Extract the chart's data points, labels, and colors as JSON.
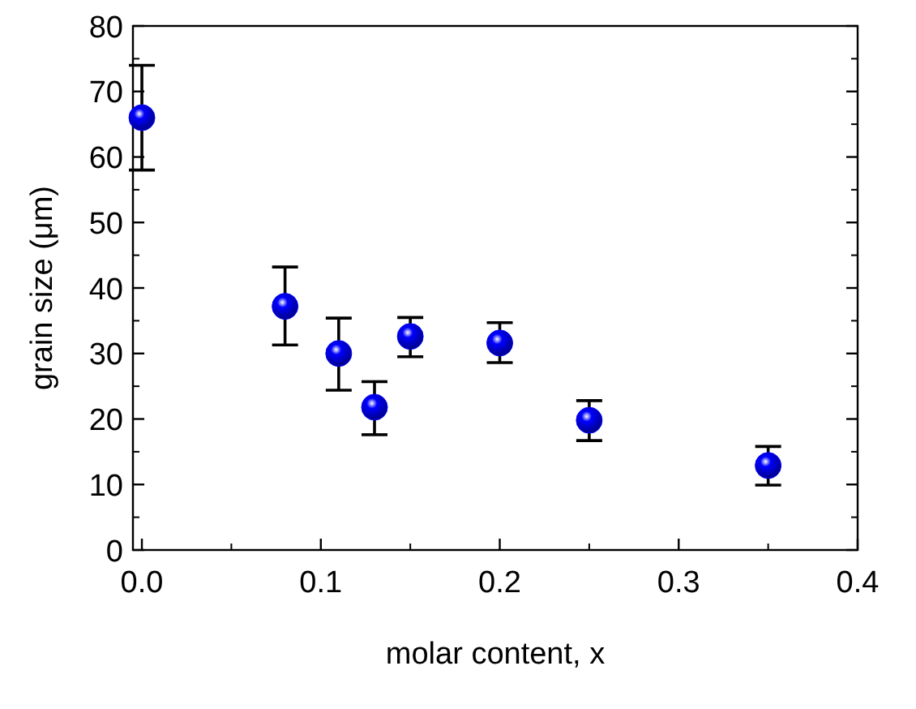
{
  "chart_data": {
    "type": "scatter",
    "xlabel": "molar content, x",
    "ylabel": "grain size (μm)",
    "x": [
      0,
      0.08,
      0.11,
      0.13,
      0.15,
      0.2,
      0.25,
      0.35
    ],
    "values": [
      66,
      37.2,
      30,
      21.8,
      32.6,
      31.6,
      19.8,
      12.9
    ],
    "errors": [
      [
        58,
        74
      ],
      [
        31.3,
        43.2
      ],
      [
        24.4,
        35.4
      ],
      [
        17.6,
        25.7
      ],
      [
        29.5,
        35.5
      ],
      [
        28.6,
        34.7
      ],
      [
        16.7,
        22.8
      ],
      [
        9.9,
        15.8
      ]
    ],
    "color": "#0000ff",
    "marker": "circle",
    "grid": false,
    "xlim": [
      -0.005,
      0.4
    ],
    "xticks": [
      {
        "value": 0,
        "label": "0.0"
      },
      0.1,
      0.2,
      0.3,
      0.4
    ],
    "ylim": [
      0,
      80
    ],
    "yticks": [
      0,
      10,
      20,
      30,
      40,
      50,
      60,
      70,
      80
    ]
  }
}
